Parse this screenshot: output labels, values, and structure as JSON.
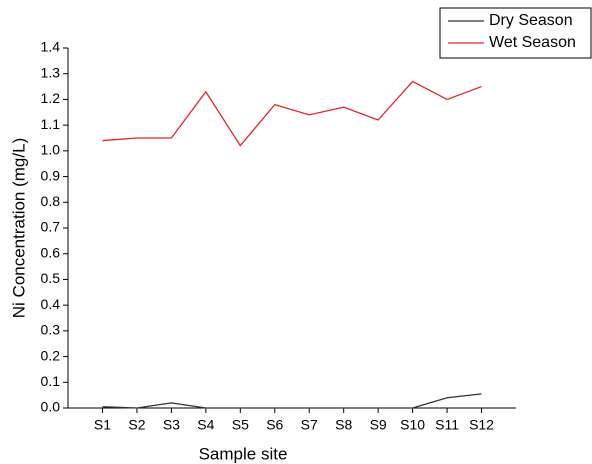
{
  "chart_data": {
    "type": "line",
    "x_label": "Sample site",
    "y_label": "Ni Concentration (mg/L)",
    "categories": [
      "S1",
      "S2",
      "S3",
      "S4",
      "S5",
      "S6",
      "S7",
      "S8",
      "S9",
      "S10",
      "S11",
      "S12"
    ],
    "series": [
      {
        "name": "Dry Season",
        "color": "#333333",
        "values": [
          0.005,
          0,
          0.02,
          0,
          0,
          0,
          0,
          0,
          0,
          0,
          0.04,
          0.055
        ]
      },
      {
        "name": "Wet Season",
        "color": "#e8232a",
        "values": [
          1.04,
          1.05,
          1.05,
          1.23,
          1.02,
          1.18,
          1.14,
          1.17,
          1.12,
          1.27,
          1.2,
          1.25
        ]
      }
    ],
    "ylim": [
      0,
      1.4
    ],
    "yticks": [
      {
        "value": 0,
        "label": "0.0"
      },
      0.1,
      0.2,
      0.3,
      0.4,
      0.5,
      0.6,
      0.7,
      0.8,
      0.9,
      {
        "value": 1,
        "label": "1.0"
      },
      1.1,
      1.2,
      1.3,
      1.4
    ],
    "legend": "top-right"
  }
}
